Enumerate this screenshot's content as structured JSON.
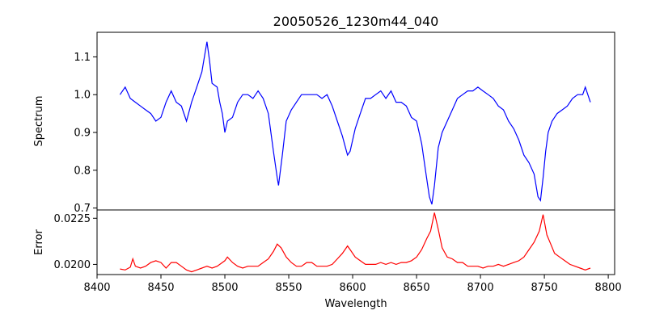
{
  "chart_data": [
    {
      "type": "line",
      "title": "20050526_1230m44_040",
      "ylabel": "Spectrum",
      "xlim": [
        8400,
        8805
      ],
      "ylim": [
        0.695,
        1.165
      ],
      "yticks": [
        0.7,
        0.8,
        0.9,
        1.0,
        1.1
      ],
      "ytick_labels": [
        "0.7",
        "0.8",
        "0.9",
        "1.0",
        "1.1"
      ],
      "grid": false,
      "series": [
        {
          "color": "#0000ff",
          "x": [
            8418,
            8422,
            8426,
            8430,
            8434,
            8438,
            8442,
            8446,
            8450,
            8454,
            8458,
            8462,
            8466,
            8470,
            8474,
            8478,
            8482,
            8486,
            8488,
            8490,
            8494,
            8496,
            8498,
            8500,
            8502,
            8506,
            8510,
            8514,
            8518,
            8522,
            8526,
            8530,
            8534,
            8538,
            8541,
            8542,
            8545,
            8548,
            8552,
            8556,
            8560,
            8564,
            8568,
            8572,
            8576,
            8580,
            8584,
            8588,
            8592,
            8596,
            8598,
            8602,
            8606,
            8610,
            8614,
            8618,
            8622,
            8626,
            8630,
            8634,
            8638,
            8642,
            8646,
            8650,
            8654,
            8657,
            8660,
            8662,
            8664,
            8667,
            8670,
            8674,
            8678,
            8682,
            8686,
            8690,
            8694,
            8698,
            8702,
            8706,
            8710,
            8714,
            8718,
            8722,
            8726,
            8730,
            8734,
            8738,
            8742,
            8745,
            8747,
            8749,
            8751,
            8753,
            8756,
            8760,
            8764,
            8768,
            8772,
            8776,
            8780,
            8782,
            8786
          ],
          "y": [
            1.0,
            1.02,
            0.99,
            0.98,
            0.97,
            0.96,
            0.95,
            0.93,
            0.94,
            0.98,
            1.01,
            0.98,
            0.97,
            0.93,
            0.98,
            1.02,
            1.06,
            1.14,
            1.09,
            1.03,
            1.02,
            0.98,
            0.95,
            0.9,
            0.93,
            0.94,
            0.98,
            1.0,
            1.0,
            0.99,
            1.01,
            0.99,
            0.95,
            0.85,
            0.78,
            0.76,
            0.84,
            0.93,
            0.96,
            0.98,
            1.0,
            1.0,
            1.0,
            1.0,
            0.99,
            1.0,
            0.97,
            0.93,
            0.89,
            0.84,
            0.85,
            0.91,
            0.95,
            0.99,
            0.99,
            1.0,
            1.01,
            0.99,
            1.01,
            0.98,
            0.98,
            0.97,
            0.94,
            0.93,
            0.87,
            0.8,
            0.73,
            0.71,
            0.76,
            0.86,
            0.9,
            0.93,
            0.96,
            0.99,
            1.0,
            1.01,
            1.01,
            1.02,
            1.01,
            1.0,
            0.99,
            0.97,
            0.96,
            0.93,
            0.91,
            0.88,
            0.84,
            0.82,
            0.79,
            0.73,
            0.72,
            0.78,
            0.85,
            0.9,
            0.93,
            0.95,
            0.96,
            0.97,
            0.99,
            1.0,
            1.0,
            1.02,
            0.98
          ]
        }
      ]
    },
    {
      "type": "line",
      "xlabel": "Wavelength",
      "ylabel": "Error",
      "xlim": [
        8400,
        8805
      ],
      "ylim": [
        0.01945,
        0.02295
      ],
      "xticks": [
        8400,
        8450,
        8500,
        8550,
        8600,
        8650,
        8700,
        8750,
        8800
      ],
      "xtick_labels": [
        "8400",
        "8450",
        "8500",
        "8550",
        "8600",
        "8650",
        "8700",
        "8750",
        "8800"
      ],
      "yticks": [
        0.02,
        0.0225
      ],
      "ytick_labels": [
        "0.0200",
        "0.0225"
      ],
      "grid": false,
      "series": [
        {
          "color": "#ff0000",
          "x": [
            8418,
            8422,
            8426,
            8428,
            8430,
            8434,
            8438,
            8442,
            8446,
            8450,
            8454,
            8458,
            8462,
            8466,
            8470,
            8474,
            8478,
            8482,
            8486,
            8490,
            8494,
            8498,
            8500,
            8502,
            8506,
            8510,
            8514,
            8518,
            8522,
            8526,
            8530,
            8534,
            8538,
            8541,
            8544,
            8548,
            8552,
            8556,
            8560,
            8564,
            8568,
            8572,
            8576,
            8580,
            8584,
            8588,
            8592,
            8596,
            8598,
            8602,
            8606,
            8610,
            8614,
            8618,
            8622,
            8626,
            8630,
            8634,
            8638,
            8642,
            8646,
            8650,
            8654,
            8658,
            8661,
            8664,
            8667,
            8670,
            8674,
            8678,
            8682,
            8686,
            8690,
            8694,
            8698,
            8702,
            8706,
            8710,
            8714,
            8718,
            8722,
            8726,
            8730,
            8734,
            8738,
            8742,
            8746,
            8749,
            8752,
            8755,
            8758,
            8762,
            8766,
            8770,
            8774,
            8778,
            8782,
            8786
          ],
          "y": [
            0.01975,
            0.0197,
            0.01985,
            0.0203,
            0.0199,
            0.0198,
            0.0199,
            0.0201,
            0.0202,
            0.0201,
            0.0198,
            0.0201,
            0.0201,
            0.0199,
            0.0197,
            0.0196,
            0.0197,
            0.0198,
            0.0199,
            0.0198,
            0.0199,
            0.0201,
            0.0202,
            0.0204,
            0.0201,
            0.0199,
            0.0198,
            0.0199,
            0.0199,
            0.0199,
            0.0201,
            0.0203,
            0.0207,
            0.0211,
            0.0209,
            0.0204,
            0.0201,
            0.0199,
            0.0199,
            0.0201,
            0.0201,
            0.0199,
            0.0199,
            0.0199,
            0.02,
            0.0203,
            0.0206,
            0.021,
            0.0208,
            0.0204,
            0.0202,
            0.02,
            0.02,
            0.02,
            0.0201,
            0.02,
            0.0201,
            0.02,
            0.0201,
            0.0201,
            0.0202,
            0.0204,
            0.0208,
            0.0214,
            0.0218,
            0.0228,
            0.0219,
            0.0209,
            0.0204,
            0.0203,
            0.0201,
            0.0201,
            0.0199,
            0.0199,
            0.0199,
            0.0198,
            0.0199,
            0.0199,
            0.02,
            0.0199,
            0.02,
            0.0201,
            0.0202,
            0.0204,
            0.0208,
            0.0212,
            0.0218,
            0.0227,
            0.0216,
            0.0211,
            0.0206,
            0.0204,
            0.0202,
            0.02,
            0.0199,
            0.0198,
            0.0197,
            0.0198
          ]
        }
      ]
    }
  ]
}
